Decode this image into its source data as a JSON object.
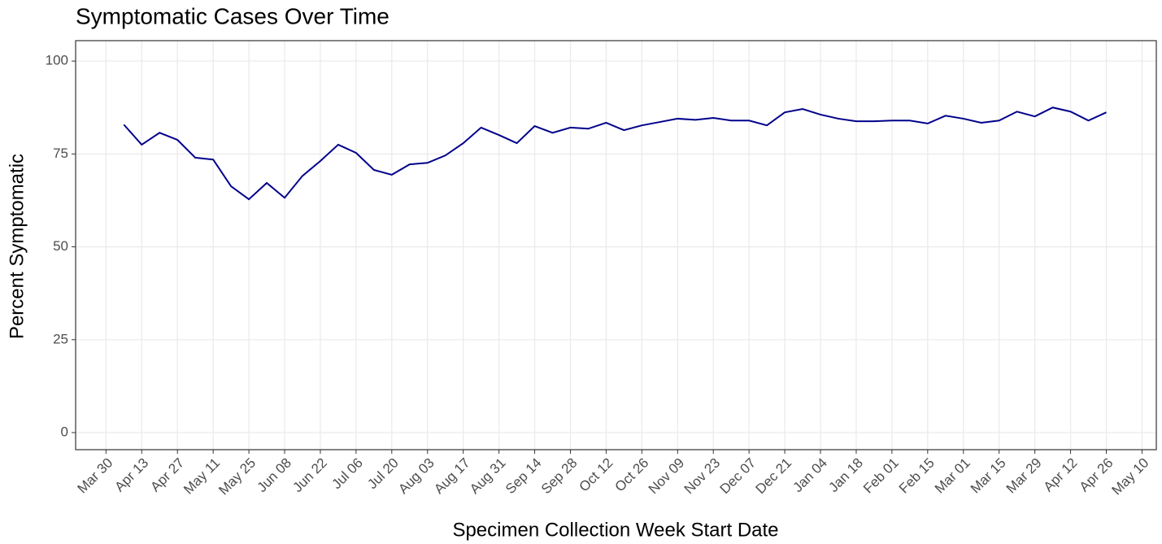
{
  "chart_data": {
    "type": "line",
    "title": "Symptomatic Cases Over Time",
    "x_label": "Specimen Collection Week Start Date",
    "y_label": "Percent Symptomatic",
    "x": [
      1,
      2,
      3,
      4,
      5,
      6,
      7,
      8,
      9,
      10,
      11,
      12,
      13,
      14,
      15,
      16,
      17,
      18,
      19,
      20,
      21,
      22,
      23,
      24,
      25,
      26,
      27,
      28,
      29,
      30,
      31,
      32,
      33,
      34,
      35,
      36,
      37,
      38,
      39,
      40,
      41,
      42,
      43,
      44,
      45,
      46,
      47,
      48,
      49,
      50,
      51,
      52,
      53,
      54,
      55,
      56
    ],
    "series": [
      {
        "color": "#00008b",
        "values": [
          82.9,
          77.5,
          80.7,
          78.8,
          74.0,
          73.5,
          66.3,
          62.8,
          67.2,
          63.2,
          69.1,
          73.1,
          77.5,
          75.3,
          70.7,
          69.4,
          72.2,
          72.6,
          74.6,
          77.9,
          82.1,
          80.1,
          77.9,
          82.5,
          80.7,
          82.1,
          81.8,
          83.4,
          81.4,
          82.7,
          83.6,
          84.5,
          84.2,
          84.7,
          84.0,
          84.0,
          82.7,
          86.2,
          87.1,
          85.6,
          84.5,
          83.8,
          83.8,
          84.0,
          84.0,
          83.2,
          85.3,
          84.5,
          83.4,
          84.0,
          86.4,
          85.1,
          87.5,
          86.4,
          84.0,
          86.2
        ]
      }
    ],
    "xlim": [
      -1.7,
      58.8
    ],
    "xticks": [
      {
        "value": 0,
        "label": "Mar 30"
      },
      {
        "value": 2,
        "label": "Apr 13"
      },
      {
        "value": 4,
        "label": "Apr 27"
      },
      {
        "value": 6,
        "label": "May 11"
      },
      {
        "value": 8,
        "label": "May 25"
      },
      {
        "value": 10,
        "label": "Jun 08"
      },
      {
        "value": 12,
        "label": "Jun 22"
      },
      {
        "value": 14,
        "label": "Jul 06"
      },
      {
        "value": 16,
        "label": "Jul 20"
      },
      {
        "value": 18,
        "label": "Aug 03"
      },
      {
        "value": 20,
        "label": "Aug 17"
      },
      {
        "value": 22,
        "label": "Aug 31"
      },
      {
        "value": 24,
        "label": "Sep 14"
      },
      {
        "value": 26,
        "label": "Sep 28"
      },
      {
        "value": 28,
        "label": "Oct 12"
      },
      {
        "value": 30,
        "label": "Oct 26"
      },
      {
        "value": 32,
        "label": "Nov 09"
      },
      {
        "value": 34,
        "label": "Nov 23"
      },
      {
        "value": 36,
        "label": "Dec 07"
      },
      {
        "value": 38,
        "label": "Dec 21"
      },
      {
        "value": 40,
        "label": "Jan 04"
      },
      {
        "value": 42,
        "label": "Jan 18"
      },
      {
        "value": 44,
        "label": "Feb 01"
      },
      {
        "value": 46,
        "label": "Feb 15"
      },
      {
        "value": 48,
        "label": "Mar 01"
      },
      {
        "value": 50,
        "label": "Mar 15"
      },
      {
        "value": 52,
        "label": "Mar 29"
      },
      {
        "value": 54,
        "label": "Apr 12"
      },
      {
        "value": 56,
        "label": "Apr 26"
      },
      {
        "value": 58,
        "label": "May 10"
      }
    ],
    "ylim": [
      -4.6,
      105.5
    ],
    "yticks": [
      0,
      25,
      50,
      75,
      100
    ],
    "grid": true
  }
}
